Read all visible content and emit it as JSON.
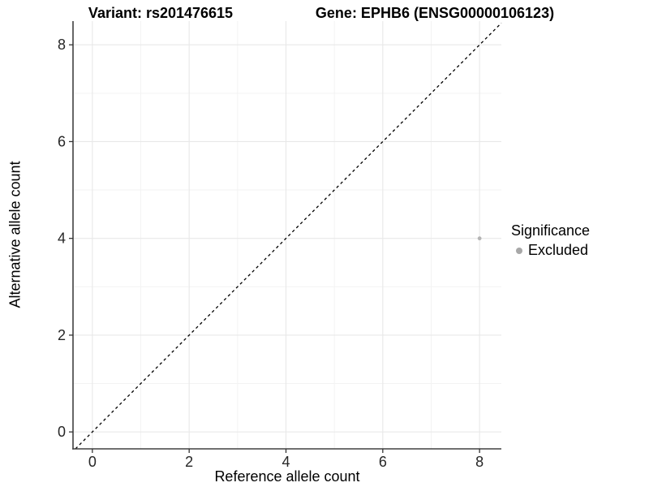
{
  "titles": {
    "left": "Variant: rs201476615",
    "right": "Gene: EPHB6 (ENSG00000106123)"
  },
  "chart_data": {
    "type": "scatter",
    "title_left": "Variant: rs201476615",
    "title_right": "Gene: EPHB6 (ENSG00000106123)",
    "xlabel": "Reference allele count",
    "ylabel": "Alternative allele count",
    "xlim": [
      -0.4,
      8.45
    ],
    "ylim": [
      -0.35,
      8.49
    ],
    "x_ticks": [
      0,
      2,
      4,
      6,
      8
    ],
    "y_ticks": [
      0,
      2,
      4,
      6,
      8
    ],
    "x_minor_ticks": [
      1,
      3,
      5,
      7
    ],
    "y_minor_ticks": [
      1,
      3,
      5,
      7
    ],
    "grid": true,
    "identity_line": {
      "slope": 1,
      "intercept": 0,
      "style": "dashed",
      "color": "#000000"
    },
    "series": [
      {
        "name": "Excluded",
        "color": "#b4b4b4",
        "points": [
          {
            "x": 8,
            "y": 4
          }
        ]
      }
    ],
    "legend": {
      "title": "Significance",
      "position": "right",
      "items": [
        {
          "label": "Excluded",
          "color": "#a8a8a8"
        }
      ]
    }
  },
  "style_colors": {
    "grid_major": "#e8e8e8",
    "grid_minor": "#f3f3f3",
    "axis_line": "#404040",
    "tick_mark": "#333333",
    "tick_label": "#262626"
  }
}
